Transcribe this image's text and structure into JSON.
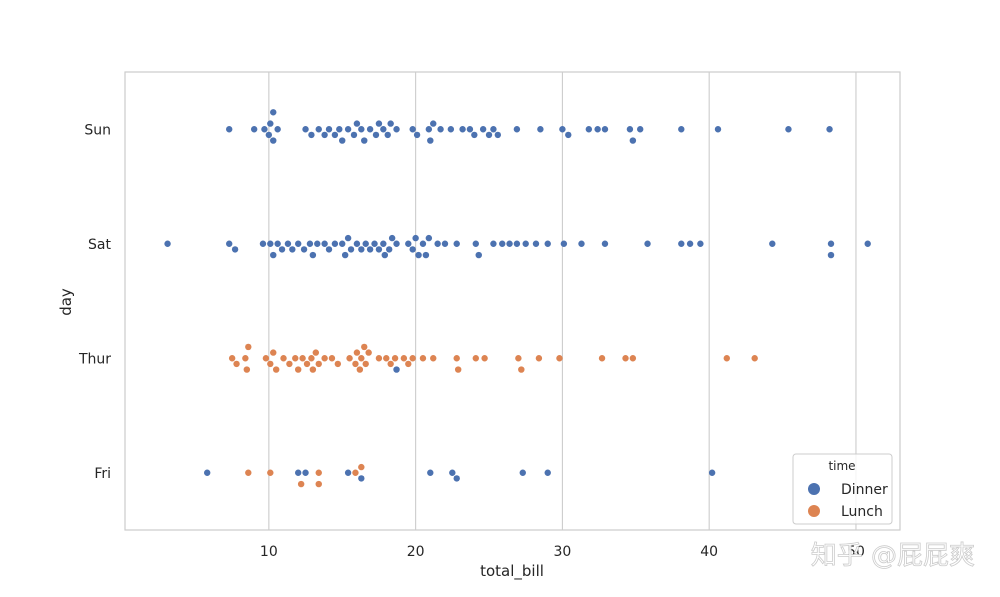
{
  "chart_data": {
    "type": "scatter",
    "subtype": "swarm",
    "xlabel": "total_bill",
    "ylabel": "day",
    "xlim": [
      0.2,
      53
    ],
    "x_ticks": [
      10,
      20,
      30,
      40,
      50
    ],
    "categories": [
      "Sun",
      "Sat",
      "Thur",
      "Fri"
    ],
    "grid": "vertical",
    "legend": {
      "title": "time",
      "placement": "lower-right"
    },
    "series": [
      {
        "name": "Dinner",
        "color": "#4c72b0",
        "points": {
          "Sun": [
            7.3,
            9.0,
            9.7,
            10.0,
            10.1,
            10.3,
            10.3,
            10.6,
            12.5,
            12.9,
            13.4,
            13.8,
            14.1,
            14.5,
            14.8,
            15.0,
            15.4,
            15.8,
            16.0,
            16.3,
            16.5,
            16.9,
            17.3,
            17.5,
            17.8,
            18.1,
            18.3,
            18.7,
            19.8,
            20.1,
            20.9,
            21.0,
            21.2,
            21.7,
            22.4,
            23.2,
            23.7,
            24.0,
            24.6,
            25.0,
            25.3,
            25.6,
            26.9,
            28.5,
            30.0,
            30.4,
            31.8,
            32.4,
            32.9,
            34.6,
            34.8,
            35.3,
            38.1,
            40.6,
            45.4,
            48.2
          ],
          "Sat": [
            3.1,
            7.3,
            7.7,
            9.6,
            10.1,
            10.3,
            10.6,
            10.9,
            11.3,
            11.6,
            12.0,
            12.4,
            12.8,
            13.0,
            13.3,
            13.8,
            14.1,
            14.5,
            15.0,
            15.2,
            15.4,
            15.6,
            16.0,
            16.3,
            16.6,
            16.9,
            17.2,
            17.5,
            17.8,
            17.9,
            18.2,
            18.4,
            18.7,
            19.5,
            19.8,
            20.0,
            20.2,
            20.5,
            20.7,
            20.9,
            21.5,
            22.0,
            22.8,
            24.1,
            24.3,
            25.3,
            25.9,
            26.4,
            26.9,
            27.5,
            28.2,
            29.0,
            30.1,
            31.3,
            32.9,
            35.8,
            38.1,
            38.7,
            39.4,
            44.3,
            48.3,
            48.3,
            50.8
          ],
          "Thur": [
            18.7
          ],
          "Fri": [
            5.8,
            12.0,
            12.5,
            15.4,
            16.3,
            21.0,
            22.5,
            22.8,
            27.3,
            29.0,
            40.2
          ]
        }
      },
      {
        "name": "Lunch",
        "color": "#dd8452",
        "points": {
          "Sun": [],
          "Sat": [],
          "Thur": [
            7.5,
            7.8,
            8.4,
            8.5,
            8.6,
            9.8,
            10.1,
            10.3,
            10.5,
            11.0,
            11.4,
            11.8,
            12.0,
            12.3,
            12.6,
            12.9,
            13.0,
            13.2,
            13.4,
            13.8,
            14.3,
            14.7,
            15.5,
            15.9,
            16.0,
            16.2,
            16.3,
            16.5,
            16.6,
            16.8,
            17.5,
            18.0,
            18.3,
            18.6,
            19.2,
            19.5,
            19.8,
            20.5,
            21.2,
            22.8,
            22.9,
            24.1,
            24.7,
            27.0,
            27.2,
            28.4,
            29.8,
            32.7,
            34.3,
            34.8,
            41.2,
            43.1
          ],
          "Fri": [
            8.6,
            10.1,
            12.2,
            13.4,
            13.4,
            15.9,
            16.3
          ]
        }
      }
    ]
  },
  "watermark": "知乎 @屁屁爽"
}
